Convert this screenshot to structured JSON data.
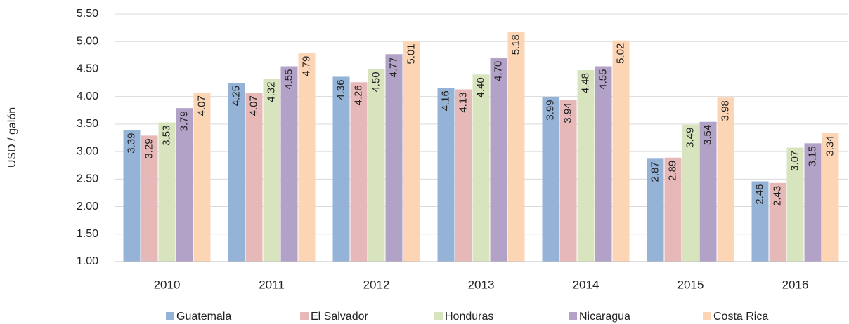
{
  "chart_data": {
    "type": "bar",
    "y_label": "USD / galón",
    "categories": [
      "2010",
      "2011",
      "2012",
      "2013",
      "2014",
      "2015",
      "2016"
    ],
    "series": [
      {
        "name": "Guatemala",
        "color": "#95b3d7",
        "values": [
          3.39,
          4.25,
          4.36,
          4.16,
          3.99,
          2.87,
          2.46
        ],
        "value_labels": [
          "3.39",
          "4.25",
          "4.36",
          "4.16",
          "3.99",
          "2.87",
          "2.46"
        ]
      },
      {
        "name": "El Salvador",
        "color": "#e6b9b8",
        "values": [
          3.29,
          4.07,
          4.26,
          4.13,
          3.94,
          2.89,
          2.43
        ],
        "value_labels": [
          "3.29",
          "4.07",
          "4.26",
          "4.13",
          "3.94",
          "2.89",
          "2.43"
        ]
      },
      {
        "name": "Honduras",
        "color": "#d7e4bd",
        "values": [
          3.53,
          4.32,
          4.5,
          4.4,
          4.48,
          3.49,
          3.07
        ],
        "value_labels": [
          "3.53",
          "4.32",
          "4.50",
          "4.40",
          "4.48",
          "3.49",
          "3.07"
        ]
      },
      {
        "name": "Nicaragua",
        "color": "#b3a2c7",
        "values": [
          3.79,
          4.55,
          4.77,
          4.7,
          4.55,
          3.54,
          3.15
        ],
        "value_labels": [
          "3.79",
          "4.55",
          "4.77",
          "4.70",
          "4.55",
          "3.54",
          "3.15"
        ]
      },
      {
        "name": "Costa Rica",
        "color": "#fcd5b5",
        "values": [
          4.07,
          4.79,
          5.01,
          5.18,
          5.02,
          3.98,
          3.34
        ],
        "value_labels": [
          "4.07",
          "4.79",
          "5.01",
          "5.18",
          "5.02",
          "3.98",
          "3.34"
        ]
      }
    ],
    "ylim": [
      1,
      5.5
    ],
    "yticks": [
      {
        "value": 1,
        "label": "1.00"
      },
      {
        "value": 1.5,
        "label": "1.50"
      },
      {
        "value": 2,
        "label": "2.00"
      },
      {
        "value": 2.5,
        "label": "2.50"
      },
      {
        "value": 3,
        "label": "3.00"
      },
      {
        "value": 3.5,
        "label": "3.50"
      },
      {
        "value": 4,
        "label": "4.00"
      },
      {
        "value": 4.5,
        "label": "4.50"
      },
      {
        "value": 5,
        "label": "5.00"
      },
      {
        "value": 5.5,
        "label": "5.50"
      }
    ],
    "grid": true,
    "legend": "bottom"
  }
}
